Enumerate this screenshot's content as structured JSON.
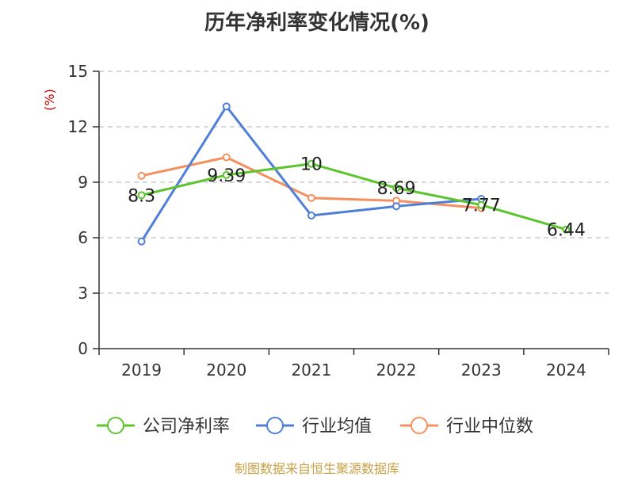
{
  "title": "历年净利率变化情况(%)",
  "source": "制图数据来自恒生聚源数据库",
  "chart_data": {
    "type": "line",
    "title": "历年净利率变化情况(%)",
    "ylabel": "(%)",
    "xlabel": "",
    "categories": [
      "2019",
      "2020",
      "2021",
      "2022",
      "2023",
      "2024"
    ],
    "ylim": [
      0,
      15
    ],
    "yticks": [
      0,
      3,
      6,
      9,
      12,
      15
    ],
    "grid": "horizontal-dashed",
    "legend_position": "bottom",
    "series": [
      {
        "name": "公司净利率",
        "color": "#5cc42c",
        "values": [
          8.3,
          9.39,
          10,
          8.69,
          7.77,
          6.44
        ],
        "labels": [
          "8.3",
          "9.39",
          "10",
          "8.69",
          "7.77",
          "6.44"
        ]
      },
      {
        "name": "行业均值",
        "color": "#4f7fd6",
        "values": [
          5.8,
          13.1,
          7.2,
          7.7,
          8.1,
          null
        ]
      },
      {
        "name": "行业中位数",
        "color": "#f5905e",
        "values": [
          9.35,
          10.35,
          8.15,
          8.0,
          7.6,
          null
        ]
      }
    ]
  }
}
